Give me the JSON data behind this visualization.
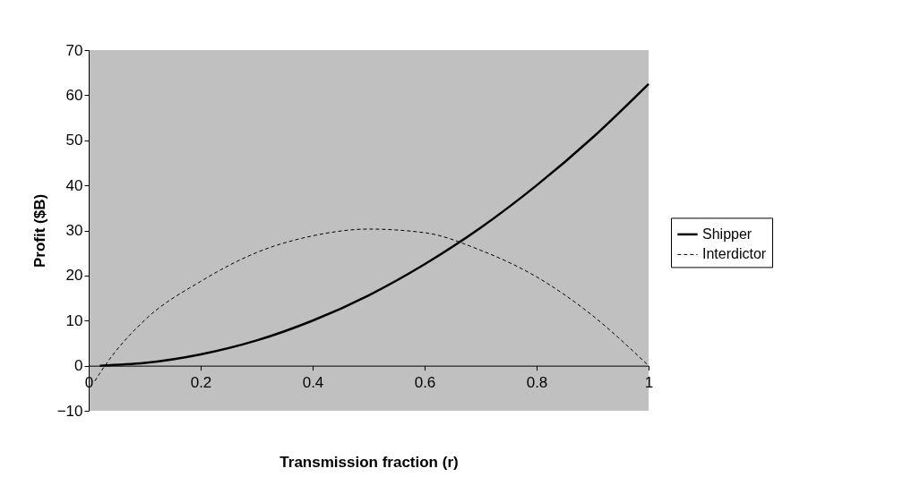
{
  "chart_data": {
    "type": "line",
    "xlabel": "Transmission fraction (r)",
    "ylabel": "Profit ($B)",
    "xlim": [
      0,
      1
    ],
    "xticks": [
      0,
      0.2,
      0.4,
      0.6,
      0.8,
      1
    ],
    "ylim": [
      -10,
      70
    ],
    "yticks": [
      -10,
      0,
      10,
      20,
      30,
      40,
      50,
      60,
      70
    ],
    "grid": false,
    "legend": "right",
    "marker": "none",
    "series": [
      {
        "name": "Shipper",
        "color": "#000000",
        "line_style": "solid",
        "x": [
          0.02,
          0.1,
          0.2,
          0.3,
          0.4,
          0.5,
          0.6,
          0.7,
          0.8,
          0.9,
          1
        ],
        "values": [
          0,
          0.6,
          2.5,
          5.6,
          10,
          15.6,
          22.5,
          30.6,
          40,
          50.6,
          62.5
        ]
      },
      {
        "name": "Interdictor",
        "color": "#000000",
        "line_style": "dashed",
        "x": [
          0.011,
          0.029,
          0.1,
          0.2,
          0.3,
          0.4,
          0.5,
          0.6,
          0.7,
          0.8,
          0.9,
          1
        ],
        "values": [
          -3.4,
          0,
          10.1,
          18.7,
          25.1,
          28.8,
          30.3,
          29.5,
          25.6,
          19.7,
          11.1,
          0
        ]
      }
    ]
  }
}
